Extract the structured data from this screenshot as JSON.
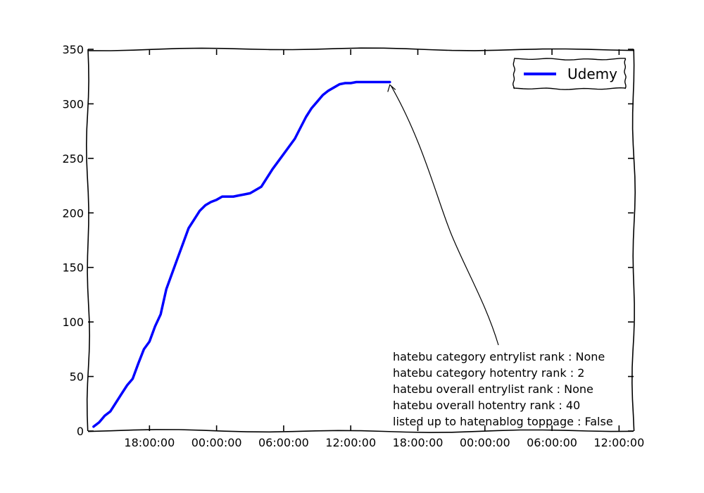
{
  "chart_data": {
    "type": "line",
    "title": "",
    "xlabel": "",
    "ylabel": "",
    "x_tick_labels": [
      "18:00:00",
      "00:00:00",
      "06:00:00",
      "12:00:00",
      "18:00:00",
      "00:00:00",
      "06:00:00",
      "12:00:00"
    ],
    "x_tick_hours": [
      5,
      11,
      17,
      23,
      29,
      35,
      41,
      47
    ],
    "xlim_hours": [
      -0.5,
      48.3
    ],
    "y_ticks": [
      0,
      50,
      100,
      150,
      200,
      250,
      300,
      350
    ],
    "ylim": [
      0,
      350
    ],
    "grid": false,
    "legend_position": "top-right",
    "series": [
      {
        "name": "Udemy",
        "color": "#0000ff",
        "x_hours": [
          0,
          0.5,
          1.0,
          1.5,
          2.0,
          2.5,
          3.0,
          3.5,
          4.0,
          4.5,
          5.0,
          5.5,
          6.0,
          6.5,
          7.0,
          7.5,
          8.0,
          8.5,
          9.0,
          9.5,
          10.0,
          10.5,
          11.0,
          11.5,
          12.0,
          12.5,
          13.0,
          13.5,
          14.0,
          15.0,
          16.0,
          17.0,
          18.0,
          18.5,
          19.0,
          19.5,
          20.0,
          20.5,
          21.0,
          21.5,
          22.0,
          22.5,
          23.0,
          23.5,
          24.0,
          24.5,
          25.0,
          25.5,
          26.0,
          26.5
        ],
        "values": [
          4,
          8,
          14,
          18,
          26,
          34,
          42,
          48,
          62,
          75,
          82,
          96,
          107,
          130,
          144,
          158,
          172,
          186,
          194,
          202,
          207,
          210,
          212,
          215,
          215,
          215,
          216,
          217,
          218,
          224,
          240,
          254,
          268,
          278,
          288,
          296,
          302,
          308,
          312,
          315,
          318,
          319,
          319,
          320,
          320,
          320,
          320,
          320,
          320,
          320
        ]
      }
    ],
    "annotation": {
      "lines": [
        "hatebu category entrylist rank  : None",
        "hatebu category hotentry rank  : 2",
        "hatebu overall entrylist rank   : None",
        "hatebu overall hotentry rank   : 40",
        "listed up to hatenablog toppage : False"
      ],
      "points_to": {
        "x_hours": 26.5,
        "y": 320
      }
    }
  }
}
